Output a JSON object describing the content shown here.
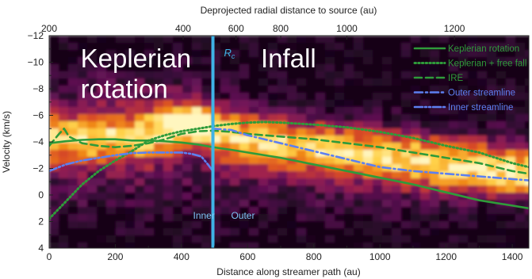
{
  "chart_data": {
    "type": "line",
    "background": "heatmap",
    "xlabel": "Distance along streamer path (au)",
    "ylabel": "Velocity (km/s)",
    "top_axis_label": "Deprojected radial distance to source (au)",
    "xlim": [
      0,
      1450
    ],
    "ylim": [
      4,
      -12
    ],
    "y_inverted": true,
    "xticks": [
      0,
      200,
      400,
      600,
      800,
      1000,
      1200,
      1400
    ],
    "yticks": [
      -12,
      -10,
      -8,
      -6,
      -4,
      -2,
      0,
      2,
      4
    ],
    "top_ticks": [
      {
        "label": "200",
        "x": 0
      },
      {
        "label": "400",
        "x": 405
      },
      {
        "label": "600",
        "x": 565
      },
      {
        "label": "800",
        "x": 700
      },
      {
        "label": "1000",
        "x": 900
      },
      {
        "label": "1200",
        "x": 1225
      }
    ],
    "vline": {
      "x": 495,
      "label": "R",
      "label_sub": "c",
      "color": "#3fb3e6"
    },
    "annotations": [
      {
        "text": "Keplerian",
        "x": 95,
        "y": -9.6
      },
      {
        "text": "rotation",
        "x": 95,
        "y": -7.3
      },
      {
        "text": "Infall",
        "x": 640,
        "y": -9.6
      },
      {
        "text": "Inner",
        "x": 435,
        "y": 1.8
      },
      {
        "text": "Outer",
        "x": 550,
        "y": 1.8
      }
    ],
    "legend_position": "top-right",
    "series": [
      {
        "name": "Keplerian rotation",
        "color": "#2f9b3a",
        "style": "solid",
        "x": [
          0,
          50,
          100,
          150,
          200,
          250,
          300,
          350,
          400,
          450,
          495,
          550,
          600,
          700,
          800,
          900,
          1000,
          1100,
          1200,
          1300,
          1400,
          1450
        ],
        "y": [
          -3.9,
          -4.05,
          -4.15,
          -4.2,
          -4.2,
          -4.1,
          -4.1,
          -4.05,
          -3.95,
          -3.8,
          -3.6,
          -3.4,
          -3.2,
          -2.8,
          -2.3,
          -1.8,
          -1.3,
          -0.8,
          -0.2,
          0.4,
          0.8,
          1.0
        ]
      },
      {
        "name": "Keplerian + free fall",
        "color": "#2f9b3a",
        "style": "dotted",
        "x": [
          0,
          50,
          100,
          150,
          200,
          250,
          300,
          350,
          400,
          450,
          500,
          550,
          600,
          650,
          700,
          800,
          900,
          1000,
          1100,
          1200,
          1300,
          1400,
          1450
        ],
        "y": [
          1.8,
          0.5,
          -0.8,
          -1.8,
          -2.6,
          -3.3,
          -4.1,
          -4.5,
          -4.8,
          -5.0,
          -5.2,
          -5.35,
          -5.45,
          -5.5,
          -5.45,
          -5.3,
          -5.1,
          -4.75,
          -4.3,
          -3.7,
          -3.2,
          -2.4,
          -2.1
        ]
      },
      {
        "name": "IRE",
        "color": "#2f9b3a",
        "style": "dashed",
        "x": [
          0,
          30,
          45,
          60,
          100,
          150,
          200,
          250,
          300,
          350,
          400,
          450,
          495,
          550,
          600,
          700,
          800,
          900,
          1000,
          1100,
          1200,
          1300,
          1400,
          1450
        ],
        "y": [
          -3.7,
          -4.6,
          -5.0,
          -4.4,
          -3.9,
          -3.7,
          -3.6,
          -3.7,
          -3.9,
          -4.2,
          -4.6,
          -4.8,
          -4.85,
          -4.75,
          -4.6,
          -4.4,
          -4.2,
          -3.9,
          -3.6,
          -3.2,
          -2.8,
          -2.4,
          -1.8,
          -1.6
        ]
      },
      {
        "name": "Outer streamline",
        "color": "#5d80f0",
        "style": "dashdot",
        "x": [
          495,
          550,
          600,
          700,
          800,
          900,
          1000,
          1100,
          1200,
          1300,
          1400,
          1450
        ],
        "y": [
          -5.0,
          -4.9,
          -4.5,
          -3.9,
          -3.3,
          -2.7,
          -2.1,
          -1.8,
          -1.6,
          -1.4,
          -1.2,
          -1.1
        ]
      },
      {
        "name": "Inner streamline",
        "color": "#5d80f0",
        "style": "dashdotdot",
        "x": [
          0,
          50,
          100,
          150,
          200,
          250,
          300,
          350,
          400,
          430,
          460,
          480,
          495
        ],
        "y": [
          -1.8,
          -2.3,
          -2.6,
          -2.8,
          -3.0,
          -3.15,
          -3.2,
          -3.2,
          -3.2,
          -3.1,
          -2.9,
          -2.3,
          -1.8
        ]
      }
    ],
    "heatmap_palette": [
      "#140516",
      "#3a0a3a",
      "#6b145a",
      "#a3244c",
      "#d84a26",
      "#f28c18",
      "#ffd24a",
      "#fff6c0"
    ]
  }
}
